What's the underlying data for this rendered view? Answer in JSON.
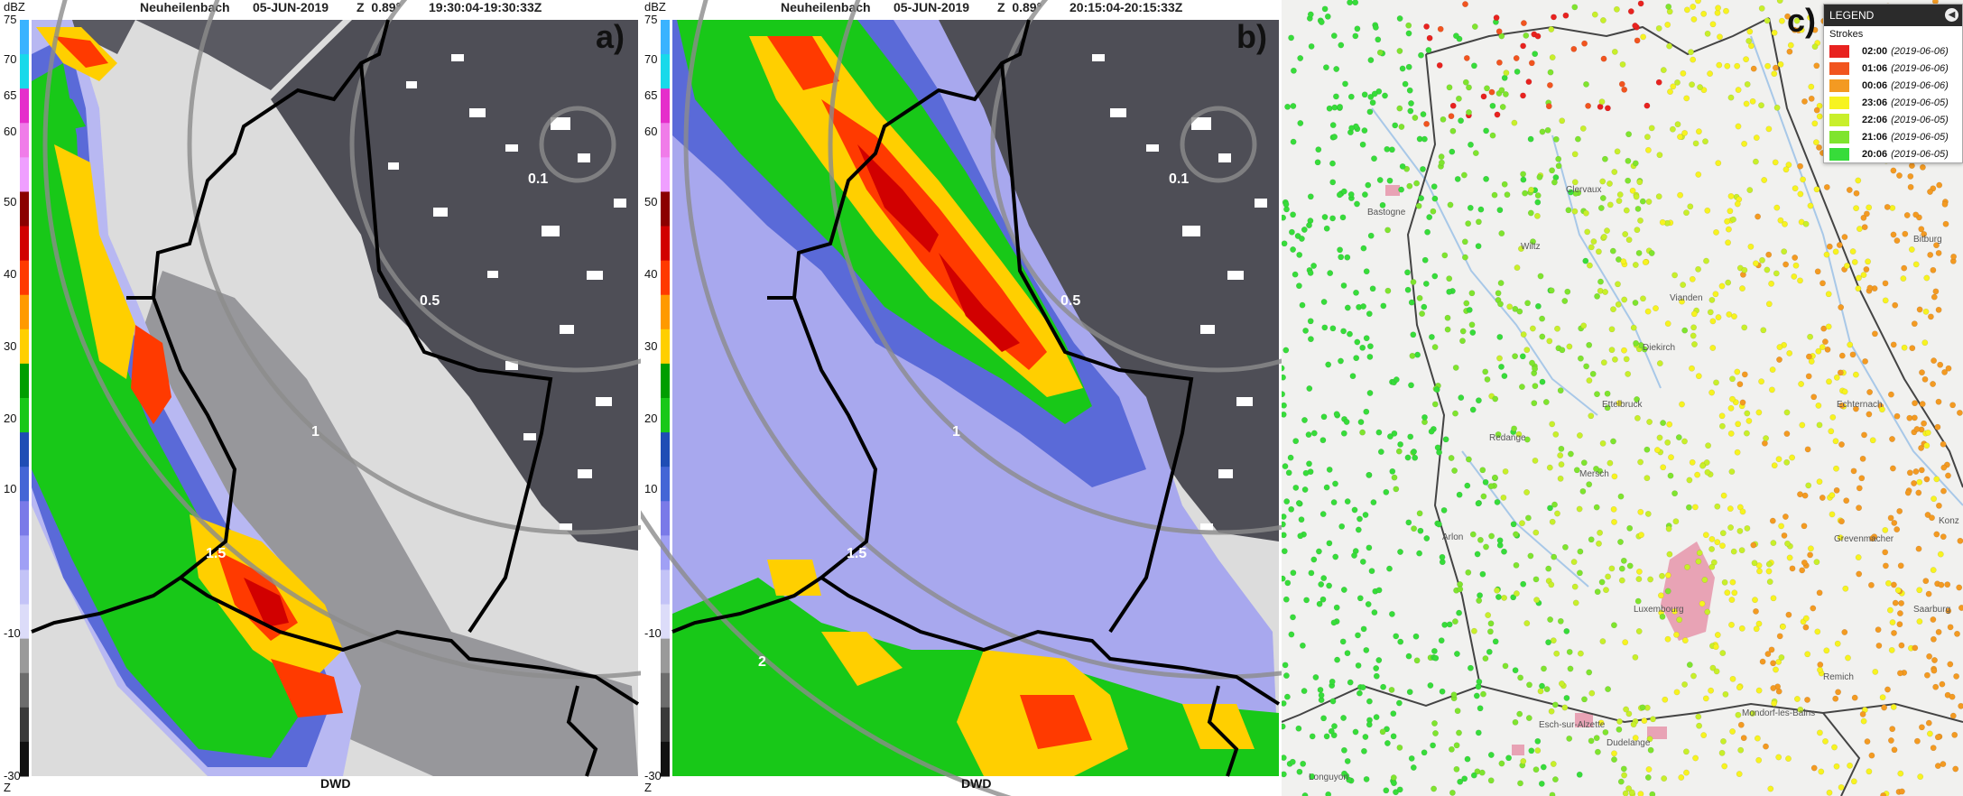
{
  "colors": {
    "radar_bg": "#dcdcdc",
    "echo_gray": "#505058",
    "clutter_white": "#ffffff",
    "border_black": "#000000",
    "range_ring": "#8c8c8c",
    "map_bg": "#f1f1ef",
    "urban_pink": "#e8a3b5",
    "river_blue": "#a8c8e8",
    "country_border": "#444444"
  },
  "radar_scale": {
    "unit": "dBZ",
    "bottom_label": "Z",
    "ticks": [
      "75",
      "70",
      "65",
      "60",
      "50",
      "40",
      "30",
      "20",
      "10",
      "-10",
      "-30"
    ],
    "bands": [
      "#3ab3ff",
      "#18d9ea",
      "#e52ecb",
      "#f07ce9",
      "#ef9fff",
      "#8b0000",
      "#d10000",
      "#ff3a00",
      "#ff9a00",
      "#ffcf00",
      "#009e00",
      "#18c818",
      "#1f4db5",
      "#4466d6",
      "#7a7ae8",
      "#a0a0f5",
      "#c3c3f7",
      "#dcdcf9",
      "#9a9a9a",
      "#6d6d6d",
      "#3a3a3a",
      "#111111"
    ]
  },
  "panel_a": {
    "station": "Neuheilenbach",
    "date": "05-JUN-2019",
    "elev": "Z  0.89°",
    "time": "19:30:04-19:30:33Z",
    "letter": "a)",
    "footer": "DWD",
    "rings": [
      "0.1",
      "0.5",
      "1",
      "1.5"
    ]
  },
  "panel_b": {
    "station": "Neuheilenbach",
    "date": "05-JUN-2019",
    "elev": "Z  0.89°",
    "time": "20:15:04-20:15:33Z",
    "letter": "b)",
    "footer": "DWD",
    "rings": [
      "0.1",
      "0.5",
      "1",
      "1.5",
      "2"
    ]
  },
  "panel_c": {
    "letter": "c)",
    "legend": {
      "title": "LEGEND",
      "close_icon": "chevron-left-icon",
      "subtitle": "Strokes",
      "entries": [
        {
          "time": "02:00",
          "date": "(2019-06-06)",
          "color": "#e8221f"
        },
        {
          "time": "01:06",
          "date": "(2019-06-06)",
          "color": "#f1541f"
        },
        {
          "time": "00:06",
          "date": "(2019-06-06)",
          "color": "#f39a22"
        },
        {
          "time": "23:06",
          "date": "(2019-06-05)",
          "color": "#f7f320"
        },
        {
          "time": "22:06",
          "date": "(2019-06-05)",
          "color": "#c8ef2a"
        },
        {
          "time": "21:06",
          "date": "(2019-06-05)",
          "color": "#7fe42e"
        },
        {
          "time": "20:06",
          "date": "(2019-06-05)",
          "color": "#37dc3a"
        }
      ]
    },
    "towns": [
      "Bastogne",
      "Clervaux",
      "Wiltz",
      "Diekirch",
      "Ettelbruck",
      "Echternach",
      "Grevenmacher",
      "Luxembourg",
      "Remich",
      "Mondorf-les-Bains",
      "Bitburg",
      "Konz",
      "Saarburg",
      "Longuyon",
      "Esch-sur-Alzette",
      "Dudelange",
      "Arlon",
      "Vianden",
      "Mersch",
      "Redange"
    ]
  }
}
